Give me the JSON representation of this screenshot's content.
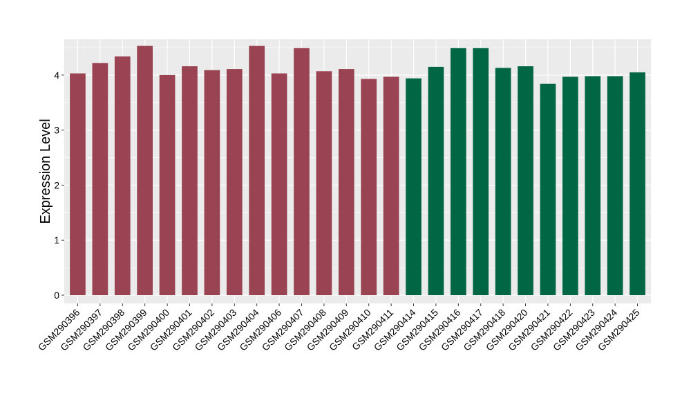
{
  "chart_data": {
    "type": "bar",
    "title": "",
    "xlabel": "",
    "ylabel": "Expression Level",
    "ylim": [
      -0.15,
      4.65
    ],
    "yticks": [
      0,
      1,
      2,
      3,
      4
    ],
    "grid": true,
    "legend": "none",
    "background_color": "#ebebeb",
    "grid_color": "#ffffff",
    "categories": [
      "GSM290396",
      "GSM290397",
      "GSM290398",
      "GSM290399",
      "GSM290400",
      "GSM290401",
      "GSM290402",
      "GSM290403",
      "GSM290404",
      "GSM290406",
      "GSM290407",
      "GSM290408",
      "GSM290409",
      "GSM290410",
      "GSM290411",
      "GSM290414",
      "GSM290415",
      "GSM290416",
      "GSM290417",
      "GSM290418",
      "GSM290420",
      "GSM290421",
      "GSM290422",
      "GSM290423",
      "GSM290424",
      "GSM290425"
    ],
    "values": [
      4.03,
      4.22,
      4.34,
      4.53,
      4.0,
      4.16,
      4.09,
      4.11,
      4.53,
      4.03,
      4.49,
      4.07,
      4.11,
      3.93,
      3.97,
      3.94,
      4.15,
      4.49,
      4.49,
      4.13,
      4.16,
      3.84,
      3.97,
      3.98,
      3.98,
      4.05
    ],
    "bar_colors": [
      "#9a4352",
      "#9a4352",
      "#9a4352",
      "#9a4352",
      "#9a4352",
      "#9a4352",
      "#9a4352",
      "#9a4352",
      "#9a4352",
      "#9a4352",
      "#9a4352",
      "#9a4352",
      "#9a4352",
      "#9a4352",
      "#9a4352",
      "#006644",
      "#006644",
      "#006644",
      "#006644",
      "#006644",
      "#006644",
      "#006644",
      "#006644",
      "#006644",
      "#006644",
      "#006644"
    ]
  }
}
